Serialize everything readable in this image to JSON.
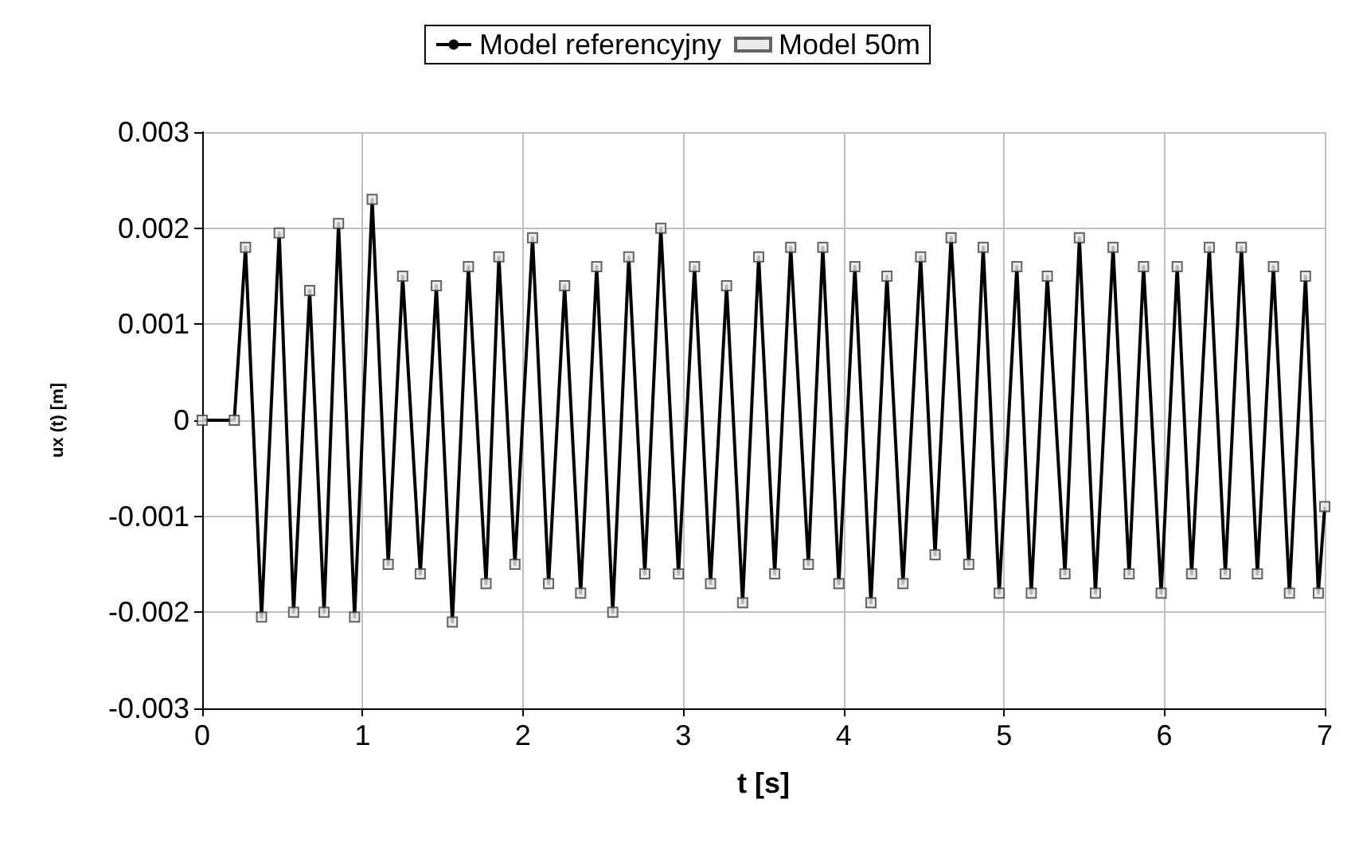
{
  "chart_data": {
    "type": "line",
    "xlabel": "t [s]",
    "ylabel": "ux (t) [m]",
    "x": [
      0,
      0.2,
      0.27,
      0.37,
      0.48,
      0.57,
      0.67,
      0.76,
      0.85,
      0.95,
      1.06,
      1.16,
      1.25,
      1.36,
      1.46,
      1.56,
      1.66,
      1.77,
      1.85,
      1.95,
      2.06,
      2.16,
      2.26,
      2.36,
      2.46,
      2.56,
      2.66,
      2.76,
      2.86,
      2.97,
      3.07,
      3.17,
      3.27,
      3.37,
      3.47,
      3.57,
      3.67,
      3.78,
      3.87,
      3.97,
      4.07,
      4.17,
      4.27,
      4.37,
      4.48,
      4.57,
      4.67,
      4.78,
      4.87,
      4.97,
      5.08,
      5.17,
      5.27,
      5.38,
      5.47,
      5.57,
      5.68,
      5.78,
      5.87,
      5.98,
      6.08,
      6.17,
      6.28,
      6.38,
      6.48,
      6.58,
      6.68,
      6.78,
      6.88,
      6.96,
      7
    ],
    "series": [
      {
        "name": "Model referencyjny",
        "color": "#000000",
        "marker": "none",
        "values": [
          0,
          0,
          0.0018,
          -0.00205,
          0.00195,
          -0.002,
          0.00135,
          -0.002,
          0.00205,
          -0.00205,
          0.0023,
          -0.0015,
          0.0015,
          -0.0016,
          0.0014,
          -0.0021,
          0.0016,
          -0.0017,
          0.0017,
          -0.0015,
          0.0019,
          -0.0017,
          0.0014,
          -0.0018,
          0.0016,
          -0.002,
          0.0017,
          -0.0016,
          0.002,
          -0.0016,
          0.0016,
          -0.0017,
          0.0014,
          -0.0019,
          0.0017,
          -0.0016,
          0.0018,
          -0.0015,
          0.0018,
          -0.0017,
          0.0016,
          -0.0019,
          0.0015,
          -0.0017,
          0.0017,
          -0.0014,
          0.0019,
          -0.0015,
          0.0018,
          -0.0018,
          0.0016,
          -0.0018,
          0.0015,
          -0.0016,
          0.0019,
          -0.0018,
          0.0018,
          -0.0016,
          0.0016,
          -0.0018,
          0.0016,
          -0.0016,
          0.0018,
          -0.0016,
          0.0018,
          -0.0016,
          0.0016,
          -0.0018,
          0.0015,
          -0.0018,
          -0.0009
        ]
      },
      {
        "name": "Model 50m",
        "type": "scatter",
        "color": "#404040",
        "marker": "square",
        "values": [
          0,
          0,
          0.0018,
          -0.00205,
          0.00195,
          -0.002,
          0.00135,
          -0.002,
          0.00205,
          -0.00205,
          0.0023,
          -0.0015,
          0.0015,
          -0.0016,
          0.0014,
          -0.0021,
          0.0016,
          -0.0017,
          0.0017,
          -0.0015,
          0.0019,
          -0.0017,
          0.0014,
          -0.0018,
          0.0016,
          -0.002,
          0.0017,
          -0.0016,
          0.002,
          -0.0016,
          0.0016,
          -0.0017,
          0.0014,
          -0.0019,
          0.0017,
          -0.0016,
          0.0018,
          -0.0015,
          0.0018,
          -0.0017,
          0.0016,
          -0.0019,
          0.0015,
          -0.0017,
          0.0017,
          -0.0014,
          0.0019,
          -0.0015,
          0.0018,
          -0.0018,
          0.0016,
          -0.0018,
          0.0015,
          -0.0016,
          0.0019,
          -0.0018,
          0.0018,
          -0.0016,
          0.0016,
          -0.0018,
          0.0016,
          -0.0016,
          0.0018,
          -0.0016,
          0.0018,
          -0.0016,
          0.0016,
          -0.0018,
          0.0015,
          -0.0018,
          -0.0009
        ]
      }
    ],
    "xlim": [
      0,
      7
    ],
    "xticks": [
      0,
      1,
      2,
      3,
      4,
      5,
      6,
      7
    ],
    "ylim": [
      -0.003,
      0.003
    ],
    "yticks": [
      -0.003,
      -0.002,
      -0.001,
      0,
      0.001,
      0.002,
      0.003
    ],
    "grid": true,
    "legend": "top"
  }
}
